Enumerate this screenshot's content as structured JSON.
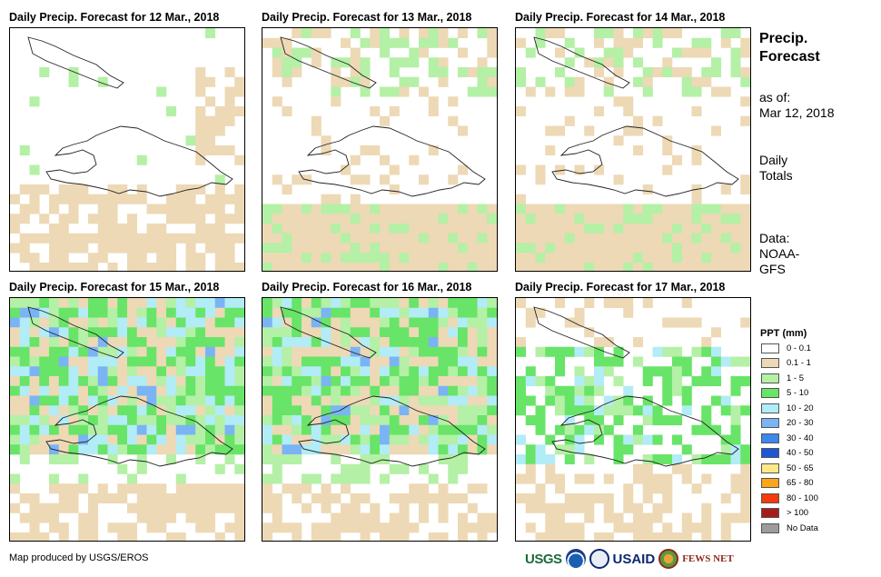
{
  "panels": [
    {
      "title": "Daily Precip. Forecast for 12 Mar., 2018",
      "wetness": 0
    },
    {
      "title": "Daily Precip. Forecast for 13 Mar., 2018",
      "wetness": 1
    },
    {
      "title": "Daily Precip. Forecast for 14 Mar., 2018",
      "wetness": 1
    },
    {
      "title": "Daily Precip. Forecast for 15 Mar., 2018",
      "wetness": 3
    },
    {
      "title": "Daily Precip. Forecast for 16 Mar., 2018",
      "wetness": 3
    },
    {
      "title": "Daily Precip. Forecast for 17 Mar., 2018",
      "wetness": 2
    }
  ],
  "sidebar": {
    "title_line1": "Precip.",
    "title_line2": "Forecast",
    "asof_label": "as of:",
    "asof_date": "Mar 12, 2018",
    "totals_line1": "Daily",
    "totals_line2": "Totals",
    "data_label": "Data:",
    "data_source_line1": "NOAA-",
    "data_source_line2": "GFS"
  },
  "legend": {
    "title": "PPT (mm)",
    "items": [
      {
        "label": "0 - 0.1",
        "color": "#ffffff"
      },
      {
        "label": "0.1 - 1",
        "color": "#edd9b5"
      },
      {
        "label": "1 - 5",
        "color": "#b4f0a6"
      },
      {
        "label": "5 - 10",
        "color": "#68e468"
      },
      {
        "label": "10 - 20",
        "color": "#b2ecf6"
      },
      {
        "label": "20 - 30",
        "color": "#7ab4f4"
      },
      {
        "label": "30 - 40",
        "color": "#3c86ec"
      },
      {
        "label": "40 - 50",
        "color": "#1f56d6"
      },
      {
        "label": "50 - 65",
        "color": "#fde98a"
      },
      {
        "label": "65 - 80",
        "color": "#fca41a"
      },
      {
        "label": "80 - 100",
        "color": "#f43a0e"
      },
      {
        "label": "> 100",
        "color": "#a61c1c"
      },
      {
        "label": "No Data",
        "color": "#9c9c9c"
      }
    ]
  },
  "credit": "Map produced by USGS/EROS",
  "logos": {
    "usgs": "USGS",
    "usaid": "USAID",
    "fews": "FEWS NET"
  }
}
